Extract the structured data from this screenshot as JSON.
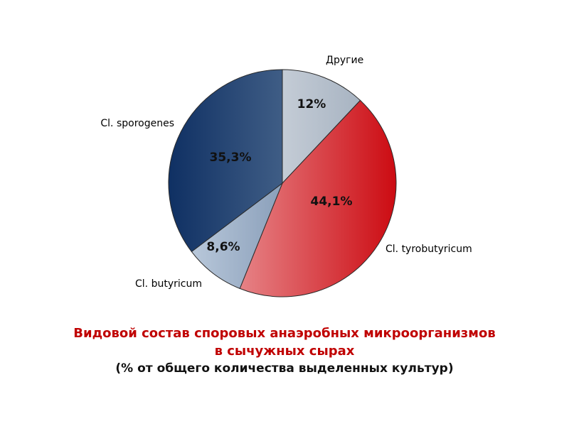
{
  "chart_data": {
    "type": "pie",
    "title": "",
    "slices": [
      {
        "label": "Другие",
        "value": 12,
        "display": "12%",
        "color_start": "#eef0f4",
        "color_end": "#9aa8b8"
      },
      {
        "label": "Cl. tyrobutyricum",
        "value": 44.1,
        "display": "44,1%",
        "color_start": "#f2b9bb",
        "color_end": "#cc0b12"
      },
      {
        "label": "Cl. butyricum",
        "value": 8.6,
        "display": "8,6%",
        "color_start": "#c4d2e2",
        "color_end": "#506c92"
      },
      {
        "label": "Cl. sporogenes",
        "value": 35.3,
        "display": "35,3%",
        "color_start": "#0f3063",
        "color_end": "#6f8aa8"
      }
    ],
    "start_angle": "12 o'clock",
    "direction": "clockwise",
    "legend": "none"
  },
  "caption": {
    "line1": "Видовой состав споровых анаэробных микроорганизмов",
    "line2": "в сычужных  сырах",
    "line3": "(% от общего количества выделенных культур)"
  },
  "colors": {
    "caption_accent": "#c00000",
    "caption_text": "#111111",
    "slice_border": "#2a2a2a"
  }
}
